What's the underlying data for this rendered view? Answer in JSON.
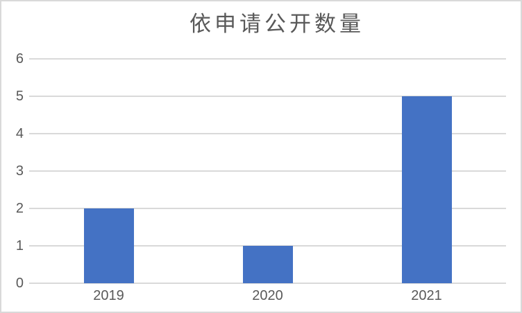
{
  "chart_data": {
    "type": "bar",
    "title": "依申请公开数量",
    "categories": [
      "2019",
      "2020",
      "2021"
    ],
    "values": [
      2,
      1,
      5
    ],
    "xlabel": "",
    "ylabel": "",
    "ylim": [
      0,
      6
    ],
    "yticks": [
      0,
      1,
      2,
      3,
      4,
      5,
      6
    ],
    "grid": true,
    "legend": false,
    "colors": {
      "bar": "#4472C4",
      "title_text": "#595959",
      "tick_text": "#595959",
      "gridline": "#D9D9D9",
      "axis_line": "#D9D9D9",
      "chart_border": "#D9D9D9",
      "background": "#FFFFFF"
    }
  }
}
